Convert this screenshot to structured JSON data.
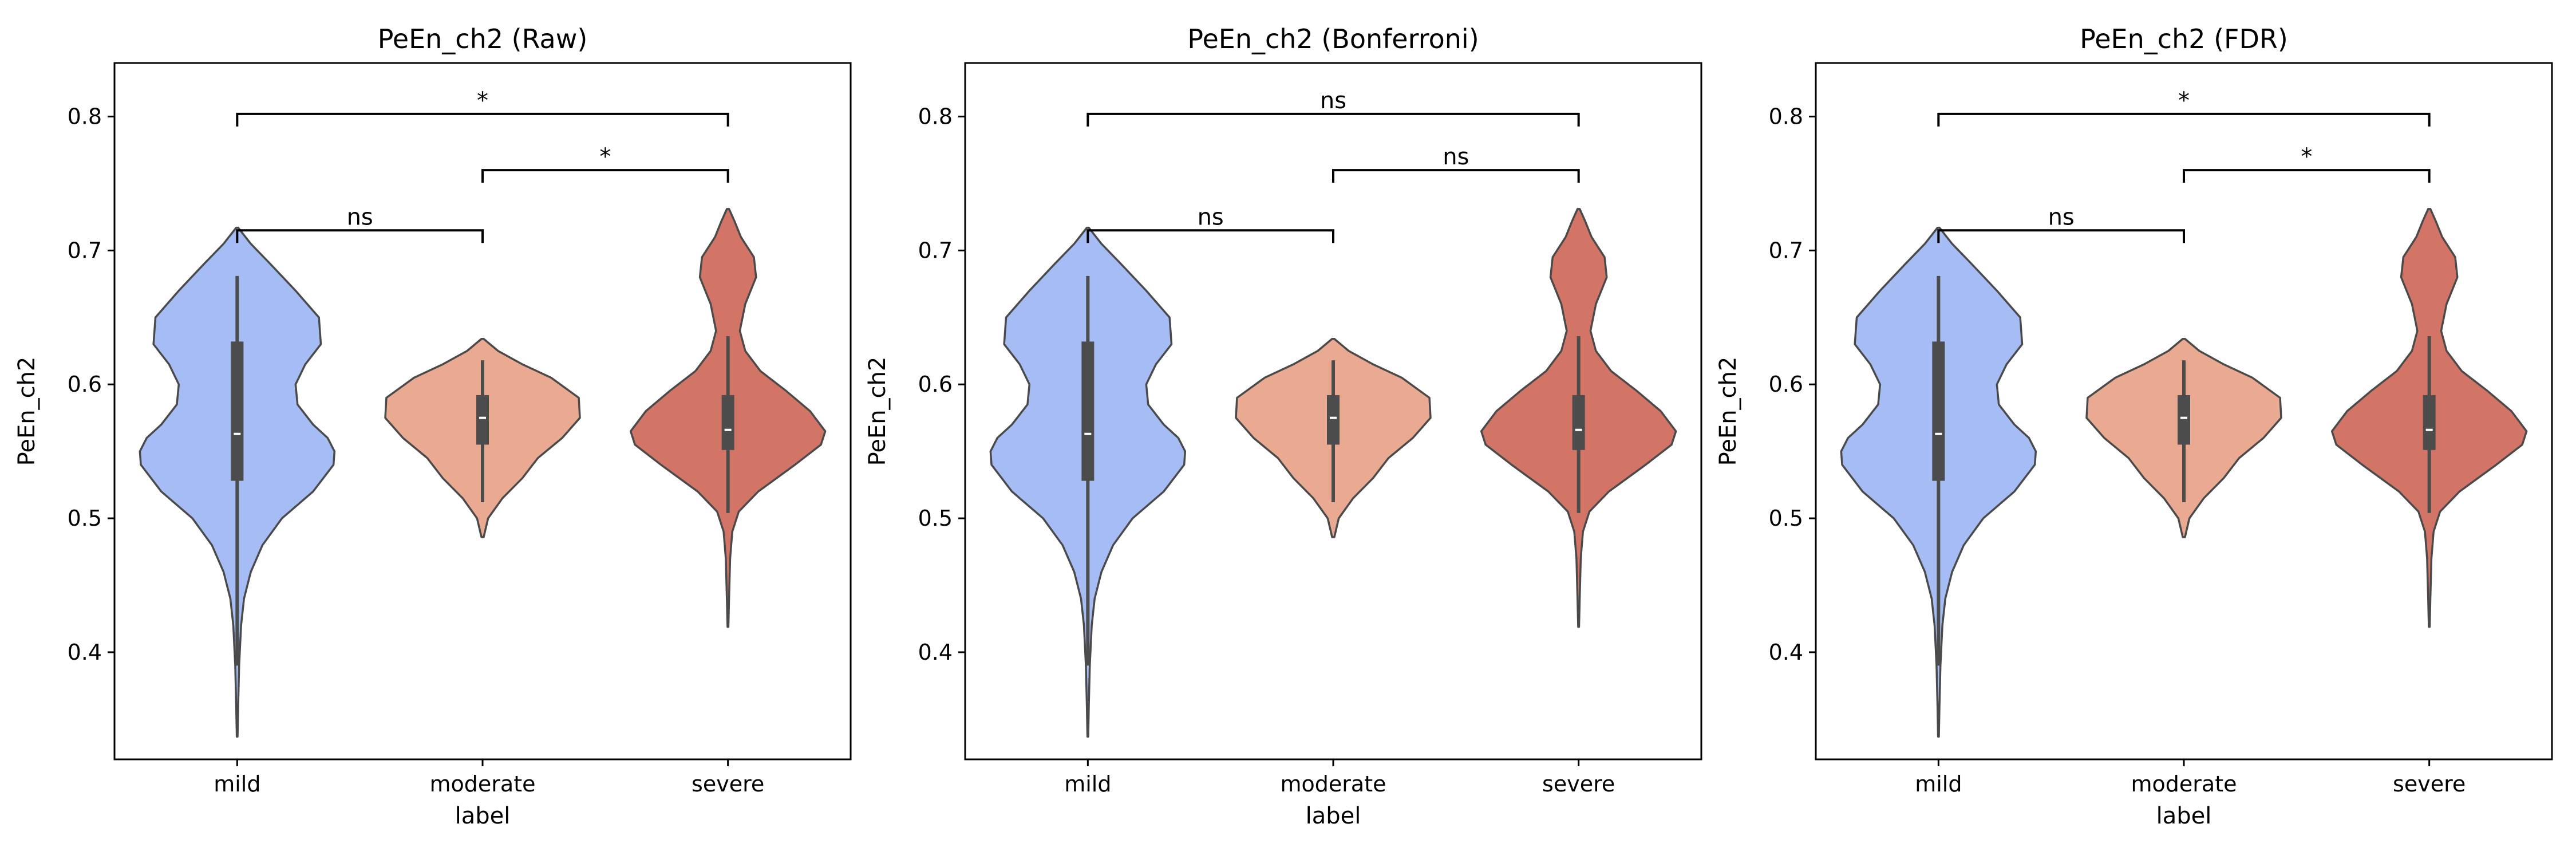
{
  "chart_data": [
    {
      "type": "violin",
      "title": "PeEn_ch2 (Raw)",
      "xlabel": "label",
      "ylabel": "PeEn_ch2",
      "categories": [
        "mild",
        "moderate",
        "severe"
      ],
      "ylim": [
        0.32,
        0.84
      ],
      "yticks": [
        "0.4",
        "0.5",
        "0.6",
        "0.7",
        "0.8"
      ],
      "grid": false,
      "colors": [
        "#a5bdf4",
        "#eaaa92",
        "#d27567"
      ],
      "violins": [
        {
          "category": "mild",
          "min": 0.337,
          "q1": 0.528,
          "median": 0.563,
          "q3": 0.632,
          "whisker_low": 0.39,
          "whisker_high": 0.681,
          "max": 0.717,
          "profile": [
            [
              0.337,
              0.004
            ],
            [
              0.36,
              0.01
            ],
            [
              0.39,
              0.02
            ],
            [
              0.42,
              0.04
            ],
            [
              0.44,
              0.07
            ],
            [
              0.46,
              0.14
            ],
            [
              0.48,
              0.26
            ],
            [
              0.5,
              0.46
            ],
            [
              0.52,
              0.78
            ],
            [
              0.54,
              0.99
            ],
            [
              0.55,
              1.0
            ],
            [
              0.56,
              0.93
            ],
            [
              0.57,
              0.78
            ],
            [
              0.585,
              0.62
            ],
            [
              0.6,
              0.6
            ],
            [
              0.615,
              0.7
            ],
            [
              0.63,
              0.86
            ],
            [
              0.65,
              0.84
            ],
            [
              0.67,
              0.6
            ],
            [
              0.69,
              0.34
            ],
            [
              0.705,
              0.14
            ],
            [
              0.717,
              0.01
            ]
          ]
        },
        {
          "category": "moderate",
          "min": 0.486,
          "q1": 0.555,
          "median": 0.575,
          "q3": 0.592,
          "whisker_low": 0.512,
          "whisker_high": 0.618,
          "max": 0.634,
          "profile": [
            [
              0.486,
              0.01
            ],
            [
              0.5,
              0.05
            ],
            [
              0.515,
              0.18
            ],
            [
              0.53,
              0.36
            ],
            [
              0.545,
              0.5
            ],
            [
              0.56,
              0.72
            ],
            [
              0.575,
              0.88
            ],
            [
              0.59,
              0.87
            ],
            [
              0.605,
              0.62
            ],
            [
              0.615,
              0.36
            ],
            [
              0.625,
              0.14
            ],
            [
              0.634,
              0.01
            ]
          ]
        },
        {
          "category": "severe",
          "min": 0.419,
          "q1": 0.551,
          "median": 0.566,
          "q3": 0.592,
          "whisker_low": 0.504,
          "whisker_high": 0.636,
          "max": 0.731,
          "profile": [
            [
              0.419,
              0.004
            ],
            [
              0.44,
              0.01
            ],
            [
              0.47,
              0.02
            ],
            [
              0.49,
              0.04
            ],
            [
              0.505,
              0.1
            ],
            [
              0.52,
              0.28
            ],
            [
              0.54,
              0.62
            ],
            [
              0.555,
              0.86
            ],
            [
              0.565,
              0.9
            ],
            [
              0.58,
              0.76
            ],
            [
              0.595,
              0.54
            ],
            [
              0.61,
              0.3
            ],
            [
              0.625,
              0.16
            ],
            [
              0.64,
              0.11
            ],
            [
              0.66,
              0.16
            ],
            [
              0.68,
              0.26
            ],
            [
              0.695,
              0.24
            ],
            [
              0.71,
              0.12
            ],
            [
              0.722,
              0.06
            ],
            [
              0.731,
              0.01
            ]
          ]
        }
      ],
      "brackets": [
        {
          "from": "mild",
          "to": "moderate",
          "y": 0.715,
          "label": "ns"
        },
        {
          "from": "moderate",
          "to": "severe",
          "y": 0.76,
          "label": "*"
        },
        {
          "from": "mild",
          "to": "severe",
          "y": 0.802,
          "label": "*"
        }
      ]
    },
    {
      "type": "violin",
      "title": "PeEn_ch2 (Bonferroni)",
      "xlabel": "label",
      "ylabel": "PeEn_ch2",
      "categories": [
        "mild",
        "moderate",
        "severe"
      ],
      "ylim": [
        0.32,
        0.84
      ],
      "yticks": [
        "0.4",
        "0.5",
        "0.6",
        "0.7",
        "0.8"
      ],
      "grid": false,
      "colors": [
        "#a5bdf4",
        "#eaaa92",
        "#d27567"
      ],
      "violins": [
        {
          "category": "mild",
          "min": 0.337,
          "q1": 0.528,
          "median": 0.563,
          "q3": 0.632,
          "whisker_low": 0.39,
          "whisker_high": 0.681,
          "max": 0.717,
          "profile": [
            [
              0.337,
              0.004
            ],
            [
              0.36,
              0.01
            ],
            [
              0.39,
              0.02
            ],
            [
              0.42,
              0.04
            ],
            [
              0.44,
              0.07
            ],
            [
              0.46,
              0.14
            ],
            [
              0.48,
              0.26
            ],
            [
              0.5,
              0.46
            ],
            [
              0.52,
              0.78
            ],
            [
              0.54,
              0.99
            ],
            [
              0.55,
              1.0
            ],
            [
              0.56,
              0.93
            ],
            [
              0.57,
              0.78
            ],
            [
              0.585,
              0.62
            ],
            [
              0.6,
              0.6
            ],
            [
              0.615,
              0.7
            ],
            [
              0.63,
              0.86
            ],
            [
              0.65,
              0.84
            ],
            [
              0.67,
              0.6
            ],
            [
              0.69,
              0.34
            ],
            [
              0.705,
              0.14
            ],
            [
              0.717,
              0.01
            ]
          ]
        },
        {
          "category": "moderate",
          "min": 0.486,
          "q1": 0.555,
          "median": 0.575,
          "q3": 0.592,
          "whisker_low": 0.512,
          "whisker_high": 0.618,
          "max": 0.634,
          "profile": [
            [
              0.486,
              0.01
            ],
            [
              0.5,
              0.05
            ],
            [
              0.515,
              0.18
            ],
            [
              0.53,
              0.36
            ],
            [
              0.545,
              0.5
            ],
            [
              0.56,
              0.72
            ],
            [
              0.575,
              0.88
            ],
            [
              0.59,
              0.87
            ],
            [
              0.605,
              0.62
            ],
            [
              0.615,
              0.36
            ],
            [
              0.625,
              0.14
            ],
            [
              0.634,
              0.01
            ]
          ]
        },
        {
          "category": "severe",
          "min": 0.419,
          "q1": 0.551,
          "median": 0.566,
          "q3": 0.592,
          "whisker_low": 0.504,
          "whisker_high": 0.636,
          "max": 0.731,
          "profile": [
            [
              0.419,
              0.004
            ],
            [
              0.44,
              0.01
            ],
            [
              0.47,
              0.02
            ],
            [
              0.49,
              0.04
            ],
            [
              0.505,
              0.1
            ],
            [
              0.52,
              0.28
            ],
            [
              0.54,
              0.62
            ],
            [
              0.555,
              0.86
            ],
            [
              0.565,
              0.9
            ],
            [
              0.58,
              0.76
            ],
            [
              0.595,
              0.54
            ],
            [
              0.61,
              0.3
            ],
            [
              0.625,
              0.16
            ],
            [
              0.64,
              0.11
            ],
            [
              0.66,
              0.16
            ],
            [
              0.68,
              0.26
            ],
            [
              0.695,
              0.24
            ],
            [
              0.71,
              0.12
            ],
            [
              0.722,
              0.06
            ],
            [
              0.731,
              0.01
            ]
          ]
        }
      ],
      "brackets": [
        {
          "from": "mild",
          "to": "moderate",
          "y": 0.715,
          "label": "ns"
        },
        {
          "from": "moderate",
          "to": "severe",
          "y": 0.76,
          "label": "ns"
        },
        {
          "from": "mild",
          "to": "severe",
          "y": 0.802,
          "label": "ns"
        }
      ]
    },
    {
      "type": "violin",
      "title": "PeEn_ch2 (FDR)",
      "xlabel": "label",
      "ylabel": "PeEn_ch2",
      "categories": [
        "mild",
        "moderate",
        "severe"
      ],
      "ylim": [
        0.32,
        0.84
      ],
      "yticks": [
        "0.4",
        "0.5",
        "0.6",
        "0.7",
        "0.8"
      ],
      "grid": false,
      "colors": [
        "#a5bdf4",
        "#eaaa92",
        "#d27567"
      ],
      "violins": [
        {
          "category": "mild",
          "min": 0.337,
          "q1": 0.528,
          "median": 0.563,
          "q3": 0.632,
          "whisker_low": 0.39,
          "whisker_high": 0.681,
          "max": 0.717,
          "profile": [
            [
              0.337,
              0.004
            ],
            [
              0.36,
              0.01
            ],
            [
              0.39,
              0.02
            ],
            [
              0.42,
              0.04
            ],
            [
              0.44,
              0.07
            ],
            [
              0.46,
              0.14
            ],
            [
              0.48,
              0.26
            ],
            [
              0.5,
              0.46
            ],
            [
              0.52,
              0.78
            ],
            [
              0.54,
              0.99
            ],
            [
              0.55,
              1.0
            ],
            [
              0.56,
              0.93
            ],
            [
              0.57,
              0.78
            ],
            [
              0.585,
              0.62
            ],
            [
              0.6,
              0.6
            ],
            [
              0.615,
              0.7
            ],
            [
              0.63,
              0.86
            ],
            [
              0.65,
              0.84
            ],
            [
              0.67,
              0.6
            ],
            [
              0.69,
              0.34
            ],
            [
              0.705,
              0.14
            ],
            [
              0.717,
              0.01
            ]
          ]
        },
        {
          "category": "moderate",
          "min": 0.486,
          "q1": 0.555,
          "median": 0.575,
          "q3": 0.592,
          "whisker_low": 0.512,
          "whisker_high": 0.618,
          "max": 0.634,
          "profile": [
            [
              0.486,
              0.01
            ],
            [
              0.5,
              0.05
            ],
            [
              0.515,
              0.18
            ],
            [
              0.53,
              0.36
            ],
            [
              0.545,
              0.5
            ],
            [
              0.56,
              0.72
            ],
            [
              0.575,
              0.88
            ],
            [
              0.59,
              0.87
            ],
            [
              0.605,
              0.62
            ],
            [
              0.615,
              0.36
            ],
            [
              0.625,
              0.14
            ],
            [
              0.634,
              0.01
            ]
          ]
        },
        {
          "category": "severe",
          "min": 0.419,
          "q1": 0.551,
          "median": 0.566,
          "q3": 0.592,
          "whisker_low": 0.504,
          "whisker_high": 0.636,
          "max": 0.731,
          "profile": [
            [
              0.419,
              0.004
            ],
            [
              0.44,
              0.01
            ],
            [
              0.47,
              0.02
            ],
            [
              0.49,
              0.04
            ],
            [
              0.505,
              0.1
            ],
            [
              0.52,
              0.28
            ],
            [
              0.54,
              0.62
            ],
            [
              0.555,
              0.86
            ],
            [
              0.565,
              0.9
            ],
            [
              0.58,
              0.76
            ],
            [
              0.595,
              0.54
            ],
            [
              0.61,
              0.3
            ],
            [
              0.625,
              0.16
            ],
            [
              0.64,
              0.11
            ],
            [
              0.66,
              0.16
            ],
            [
              0.68,
              0.26
            ],
            [
              0.695,
              0.24
            ],
            [
              0.71,
              0.12
            ],
            [
              0.722,
              0.06
            ],
            [
              0.731,
              0.01
            ]
          ]
        }
      ],
      "brackets": [
        {
          "from": "mild",
          "to": "moderate",
          "y": 0.715,
          "label": "ns"
        },
        {
          "from": "moderate",
          "to": "severe",
          "y": 0.76,
          "label": "*"
        },
        {
          "from": "mild",
          "to": "severe",
          "y": 0.802,
          "label": "*"
        }
      ]
    }
  ]
}
